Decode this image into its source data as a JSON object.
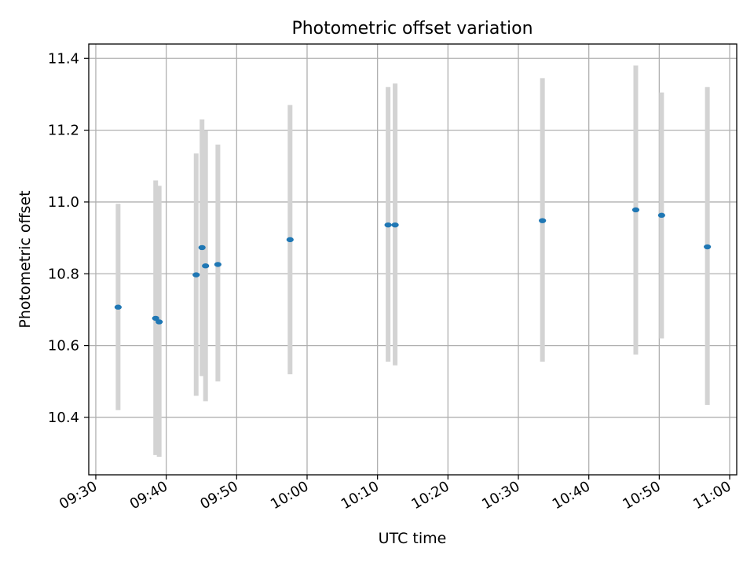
{
  "chart_data": {
    "type": "scatter",
    "title": "Photometric offset variation",
    "xlabel": "UTC time",
    "ylabel": "Photometric offset",
    "x_ticks": [
      "09:30",
      "09:40",
      "09:50",
      "10:00",
      "10:10",
      "10:20",
      "10:30",
      "10:40",
      "10:50",
      "11:00"
    ],
    "y_ticks": [
      10.4,
      10.6,
      10.8,
      11.0,
      11.2,
      11.4
    ],
    "xlim": [
      "09:29:00",
      "11:01:00"
    ],
    "ylim": [
      10.24,
      11.44
    ],
    "grid": true,
    "error_bar_color": "#d3d3d3",
    "point_color": "#1f77b4",
    "points": [
      {
        "x": "09:33:10",
        "y": 10.707,
        "ymin": 10.42,
        "ymax": 10.995
      },
      {
        "x": "09:38:30",
        "y": 10.676,
        "ymin": 10.295,
        "ymax": 11.06
      },
      {
        "x": "09:39:00",
        "y": 10.666,
        "ymin": 10.29,
        "ymax": 11.045
      },
      {
        "x": "09:44:15",
        "y": 10.797,
        "ymin": 10.46,
        "ymax": 11.135
      },
      {
        "x": "09:45:05",
        "y": 10.873,
        "ymin": 10.515,
        "ymax": 11.23
      },
      {
        "x": "09:45:35",
        "y": 10.822,
        "ymin": 10.445,
        "ymax": 11.2
      },
      {
        "x": "09:47:20",
        "y": 10.826,
        "ymin": 10.5,
        "ymax": 11.16
      },
      {
        "x": "09:57:35",
        "y": 10.895,
        "ymin": 10.52,
        "ymax": 11.27
      },
      {
        "x": "10:11:30",
        "y": 10.936,
        "ymin": 10.555,
        "ymax": 11.32
      },
      {
        "x": "10:12:30",
        "y": 10.936,
        "ymin": 10.545,
        "ymax": 11.33
      },
      {
        "x": "10:33:25",
        "y": 10.948,
        "ymin": 10.555,
        "ymax": 11.345
      },
      {
        "x": "10:46:40",
        "y": 10.978,
        "ymin": 10.575,
        "ymax": 11.38
      },
      {
        "x": "10:50:20",
        "y": 10.963,
        "ymin": 10.62,
        "ymax": 11.305
      },
      {
        "x": "10:56:50",
        "y": 10.875,
        "ymin": 10.435,
        "ymax": 11.32
      }
    ]
  }
}
